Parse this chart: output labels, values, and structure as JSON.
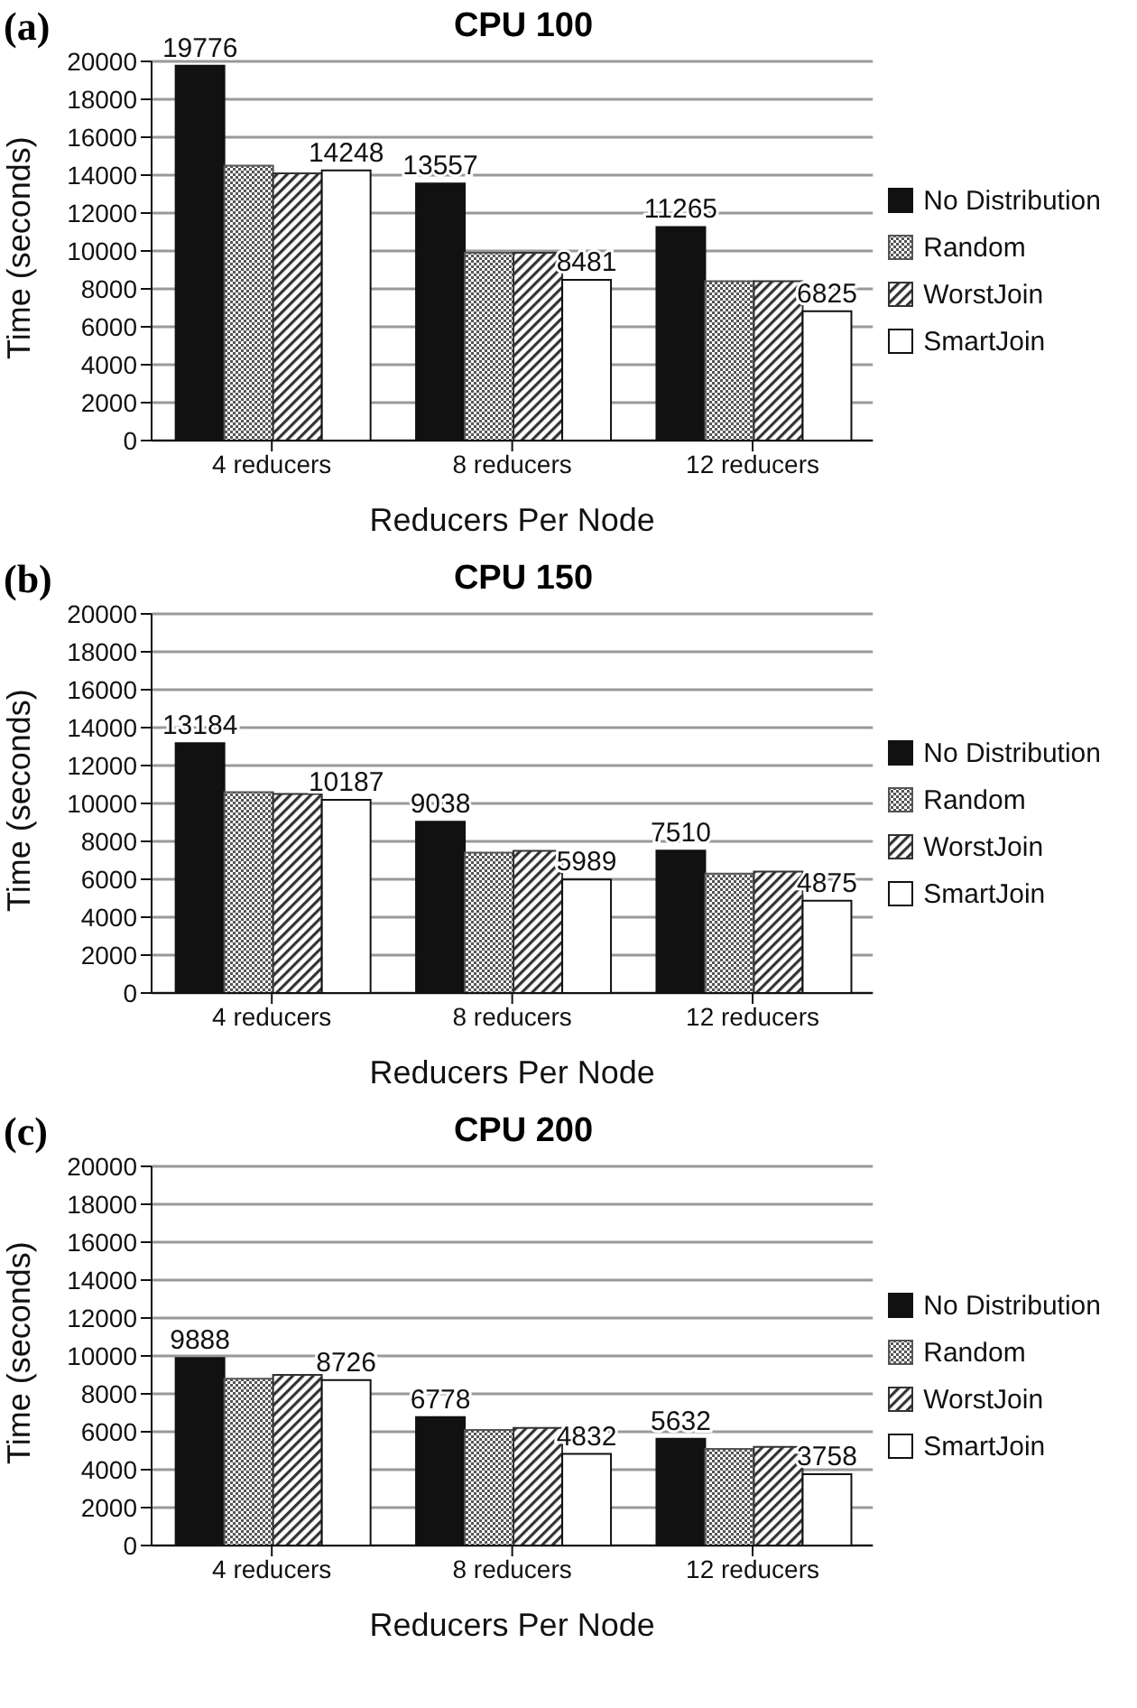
{
  "chart_data": [
    {
      "type": "bar",
      "title": "CPU 100",
      "xlabel": "Reducers Per Node",
      "ylabel": "Time (seconds)",
      "annotations": [
        "(a)"
      ],
      "categories": [
        "4 reducers",
        "8 reducers",
        "12 reducers"
      ],
      "ylim": [
        0,
        20000
      ],
      "yticks": [
        0,
        2000,
        4000,
        6000,
        8000,
        10000,
        12000,
        14000,
        16000,
        18000,
        20000
      ],
      "grid": "y",
      "legend": "right",
      "series": [
        {
          "name": "No Distribution",
          "color": "#111111",
          "values": [
            19776,
            13557,
            11265
          ],
          "value_labels": [
            "19776",
            "13557",
            "11265"
          ]
        },
        {
          "name": "Random",
          "color": "#555555",
          "values": [
            14500,
            9900,
            8400
          ]
        },
        {
          "name": "WorstJoin",
          "color": "#333333",
          "values": [
            14100,
            9900,
            8400
          ]
        },
        {
          "name": "SmartJoin",
          "color": "#ffffff",
          "values": [
            14248,
            8481,
            6825
          ],
          "value_labels": [
            "14248",
            "8481",
            "6825"
          ]
        }
      ]
    },
    {
      "type": "bar",
      "title": "CPU 150",
      "xlabel": "Reducers Per Node",
      "ylabel": "Time (seconds)",
      "annotations": [
        "(b)"
      ],
      "categories": [
        "4 reducers",
        "8 reducers",
        "12 reducers"
      ],
      "ylim": [
        0,
        20000
      ],
      "yticks": [
        0,
        2000,
        4000,
        6000,
        8000,
        10000,
        12000,
        14000,
        16000,
        18000,
        20000
      ],
      "grid": "y",
      "legend": "right",
      "series": [
        {
          "name": "No Distribution",
          "color": "#111111",
          "values": [
            13184,
            9038,
            7510
          ],
          "value_labels": [
            "13184",
            "9038",
            "7510"
          ]
        },
        {
          "name": "Random",
          "color": "#555555",
          "values": [
            10600,
            7400,
            6300
          ]
        },
        {
          "name": "WorstJoin",
          "color": "#333333",
          "values": [
            10500,
            7500,
            6400
          ]
        },
        {
          "name": "SmartJoin",
          "color": "#ffffff",
          "values": [
            10187,
            5989,
            4875
          ],
          "value_labels": [
            "10187",
            "5989",
            "4875"
          ]
        }
      ]
    },
    {
      "type": "bar",
      "title": "CPU 200",
      "xlabel": "Reducers Per Node",
      "ylabel": "Time (seconds)",
      "annotations": [
        "(c)"
      ],
      "categories": [
        "4 reducers",
        "8 reducers",
        "12 reducers"
      ],
      "ylim": [
        0,
        20000
      ],
      "yticks": [
        0,
        2000,
        4000,
        6000,
        8000,
        10000,
        12000,
        14000,
        16000,
        18000,
        20000
      ],
      "grid": "y",
      "legend": "right",
      "series": [
        {
          "name": "No Distribution",
          "color": "#111111",
          "values": [
            9888,
            6778,
            5632
          ],
          "value_labels": [
            "9888",
            "6778",
            "5632"
          ]
        },
        {
          "name": "Random",
          "color": "#555555",
          "values": [
            8800,
            6100,
            5100
          ]
        },
        {
          "name": "WorstJoin",
          "color": "#333333",
          "values": [
            9000,
            6200,
            5200
          ]
        },
        {
          "name": "SmartJoin",
          "color": "#ffffff",
          "values": [
            8726,
            4832,
            3758
          ],
          "value_labels": [
            "8726",
            "4832",
            "3758"
          ]
        }
      ]
    }
  ]
}
